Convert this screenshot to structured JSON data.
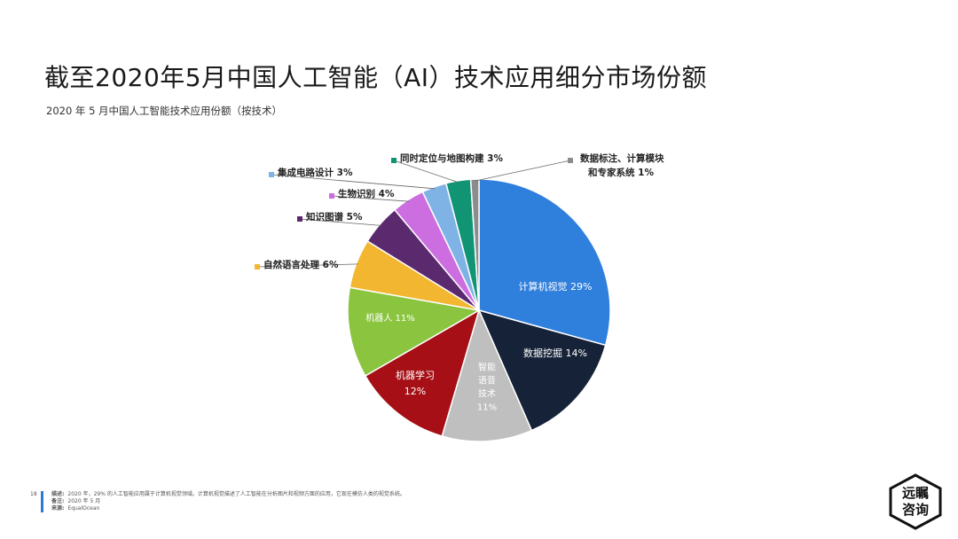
{
  "title": "截至2020年5月中国人工智能（AI）技术应用细分市场份额",
  "subtitle": "2020 年 5 月中国人工智能技术应用份额（按技术）",
  "chart_data": {
    "type": "pie",
    "unit": "%",
    "slices": [
      {
        "name": "计算机视觉",
        "value": 29,
        "color": "#2f7fdc",
        "label": "计算机视觉 29%",
        "label_color": "#ffffff"
      },
      {
        "name": "数据挖掘",
        "value": 14,
        "color": "#152238",
        "label": "数据挖掘 14%",
        "label_color": "#ffffff"
      },
      {
        "name": "智能语音技术",
        "value": 11,
        "color": "#bfbfbf",
        "label": "智能\n语音\n技术\n11%",
        "label_color": "#ffffff"
      },
      {
        "name": "机器学习",
        "value": 12,
        "color": "#a50f15",
        "label": "机器学习\n12%",
        "label_color": "#ffffff"
      },
      {
        "name": "机器人",
        "value": 11,
        "color": "#8bc53f",
        "label": "机器人 11%",
        "label_color": "#ffffff"
      },
      {
        "name": "自然语言处理",
        "value": 6,
        "color": "#f2b630",
        "label": "自然语言处理 6%",
        "label_color": "#222222"
      },
      {
        "name": "知识图谱",
        "value": 5,
        "color": "#5b2a6e",
        "label": "知识图谱 5%",
        "label_color": "#222222"
      },
      {
        "name": "生物识别",
        "value": 4,
        "color": "#cc6ee0",
        "label": "生物识别 4%",
        "label_color": "#222222"
      },
      {
        "name": "集成电路设计",
        "value": 3,
        "color": "#7fb2e5",
        "label": "集成电路设计 3%",
        "label_color": "#222222"
      },
      {
        "name": "同时定位与地图构建",
        "value": 3,
        "color": "#119473",
        "label": "同时定位与地图构建 3%",
        "label_color": "#222222"
      },
      {
        "name": "数据标注、计算模块和专家系统",
        "value": 1,
        "color": "#8c8c8c",
        "label": "数据标注、计算模块\n和专家系统 1%",
        "label_color": "#222222"
      }
    ]
  },
  "footer": {
    "page_number": "18",
    "lines": [
      {
        "key": "描述:",
        "text": "2020 年，29% 的人工智能应用属于计算机视觉领域。计算机视觉描述了人工智能在分析图片和视频方面的应用，它现在模仿人类的视觉系统。"
      },
      {
        "key": "备注:",
        "text": "2020 年 5 月"
      },
      {
        "key": "来源:",
        "text": "EqualOcean"
      }
    ]
  },
  "logo": {
    "line1": "远瞩",
    "line2": "咨询"
  }
}
